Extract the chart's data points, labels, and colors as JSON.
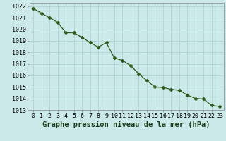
{
  "x": [
    0,
    1,
    2,
    3,
    4,
    5,
    6,
    7,
    8,
    9,
    10,
    11,
    12,
    13,
    14,
    15,
    16,
    17,
    18,
    19,
    20,
    21,
    22,
    23
  ],
  "y": [
    1021.8,
    1021.4,
    1021.0,
    1020.6,
    1019.7,
    1019.7,
    1019.3,
    1018.85,
    1018.45,
    1018.85,
    1017.5,
    1017.3,
    1016.85,
    1016.15,
    1015.55,
    1015.0,
    1014.95,
    1014.8,
    1014.7,
    1014.3,
    1014.0,
    1013.95,
    1013.4,
    1013.3
  ],
  "line_color": "#2d5a1b",
  "marker": "D",
  "marker_size": 2.5,
  "bg_color": "#cce9e9",
  "grid_color": "#aad0d0",
  "xlabel": "Graphe pression niveau de la mer (hPa)",
  "xlabel_fontsize": 7.5,
  "tick_fontsize": 6.0,
  "xlim_min": -0.5,
  "xlim_max": 23.5,
  "ylim_min": 1013,
  "ylim_max": 1022.3,
  "yticks": [
    1013,
    1014,
    1015,
    1016,
    1017,
    1018,
    1019,
    1020,
    1021,
    1022
  ],
  "xticks": [
    0,
    1,
    2,
    3,
    4,
    5,
    6,
    7,
    8,
    9,
    10,
    11,
    12,
    13,
    14,
    15,
    16,
    17,
    18,
    19,
    20,
    21,
    22,
    23
  ]
}
